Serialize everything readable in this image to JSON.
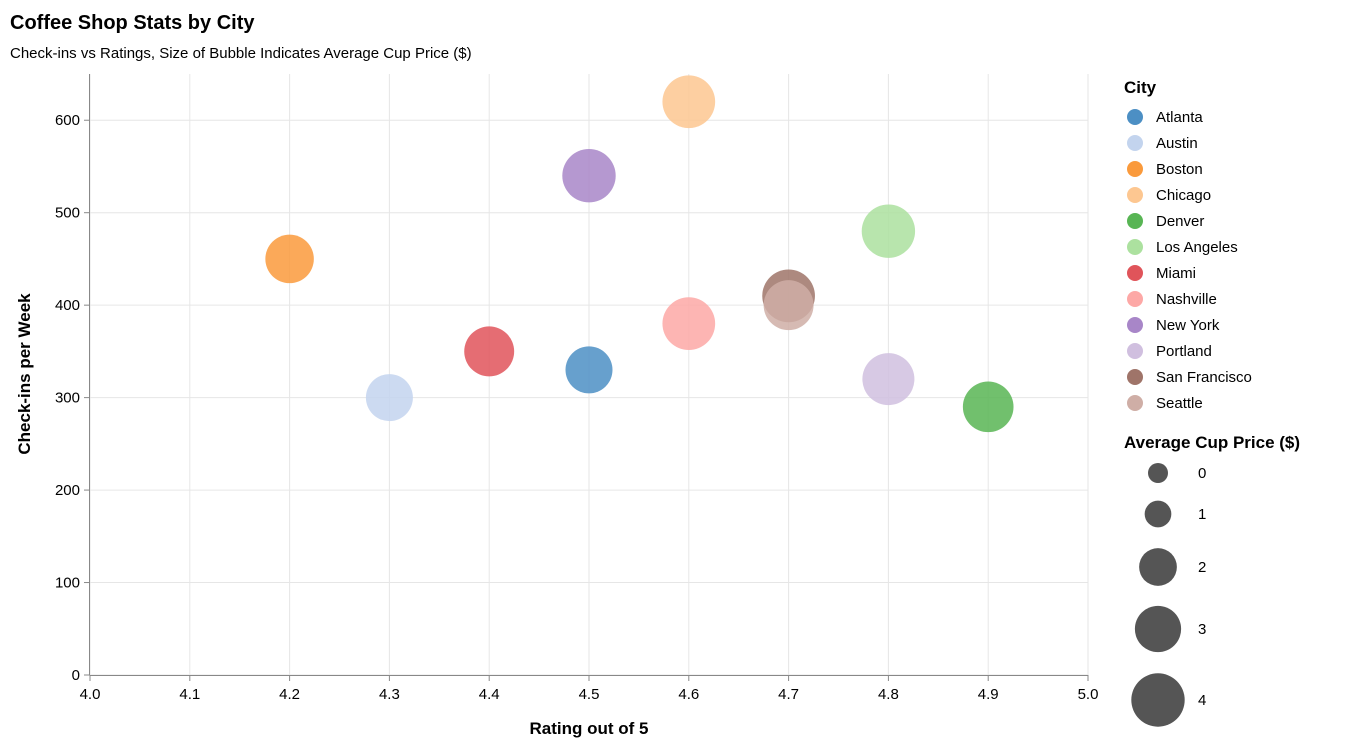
{
  "chart_data": {
    "type": "scatter",
    "title": "Coffee Shop Stats by City",
    "subtitle": "Check-ins vs Ratings, Size of Bubble Indicates Average Cup Price ($)",
    "xlabel": "Rating out of 5",
    "ylabel": "Check-ins per Week",
    "xlim": [
      4.0,
      5.0
    ],
    "ylim": [
      0,
      650
    ],
    "x_ticks": [
      4.0,
      4.1,
      4.2,
      4.3,
      4.4,
      4.5,
      4.6,
      4.7,
      4.8,
      4.9,
      5.0
    ],
    "x_tick_labels": [
      "4.0",
      "4.1",
      "4.2",
      "4.3",
      "4.4",
      "4.5",
      "4.6",
      "4.7",
      "4.8",
      "4.9",
      "5.0"
    ],
    "y_ticks": [
      0,
      100,
      200,
      300,
      400,
      500,
      600
    ],
    "y_tick_labels": [
      "0",
      "100",
      "200",
      "300",
      "400",
      "500",
      "600"
    ],
    "grid": true,
    "legend_placement": "right",
    "color_legend_title": "City",
    "size_legend_title": "Average Cup Price ($)",
    "size_legend_values": [
      0,
      1,
      2,
      3,
      4
    ],
    "size_legend_labels": [
      "0",
      "1",
      "2",
      "3",
      "4"
    ],
    "size_domain_max": 4.2,
    "points": [
      {
        "city": "Atlanta",
        "rating": 4.5,
        "checkins": 330,
        "price": 3.1,
        "color": "#4c8fc4"
      },
      {
        "city": "Austin",
        "rating": 4.3,
        "checkins": 300,
        "price": 3.1,
        "color": "#c3d4ee"
      },
      {
        "city": "Boston",
        "rating": 4.2,
        "checkins": 450,
        "price": 3.3,
        "color": "#fa9a3c"
      },
      {
        "city": "Chicago",
        "rating": 4.6,
        "checkins": 620,
        "price": 3.9,
        "color": "#fdc791"
      },
      {
        "city": "Denver",
        "rating": 4.9,
        "checkins": 290,
        "price": 3.6,
        "color": "#58b554"
      },
      {
        "city": "Los Angeles",
        "rating": 4.8,
        "checkins": 480,
        "price": 4.0,
        "color": "#ace19f"
      },
      {
        "city": "Miami",
        "rating": 4.4,
        "checkins": 350,
        "price": 3.5,
        "color": "#e0545a"
      },
      {
        "city": "Nashville",
        "rating": 4.6,
        "checkins": 380,
        "price": 3.9,
        "color": "#fda8a6"
      },
      {
        "city": "New York",
        "rating": 4.5,
        "checkins": 540,
        "price": 4.0,
        "color": "#a886c8"
      },
      {
        "city": "Portland",
        "rating": 4.8,
        "checkins": 320,
        "price": 3.8,
        "color": "#d0bfdf"
      },
      {
        "city": "San Francisco",
        "rating": 4.7,
        "checkins": 410,
        "price": 3.9,
        "color": "#9f7469"
      },
      {
        "city": "Seattle",
        "rating": 4.7,
        "checkins": 400,
        "price": 3.5,
        "color": "#cfaea6"
      }
    ],
    "size_legend_color": "#555555"
  }
}
